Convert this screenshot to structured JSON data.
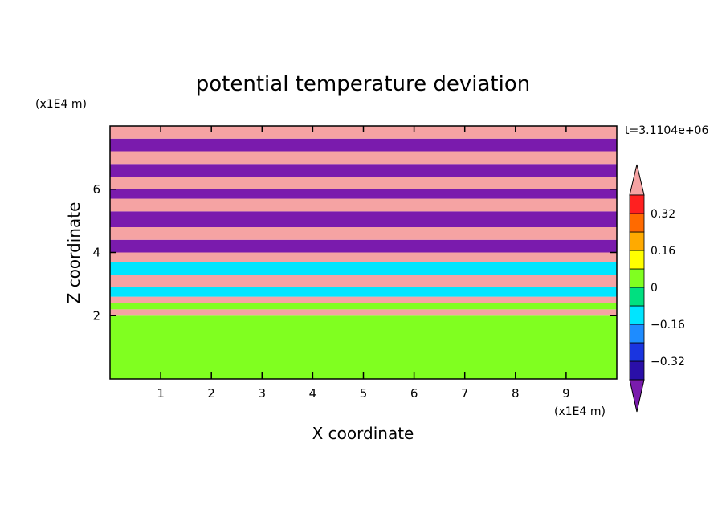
{
  "chart_data": {
    "type": "heatmap",
    "title": "potential temperature deviation",
    "time_label": "t=3.1104e+06",
    "xlabel": "X coordinate",
    "ylabel": "Z coordinate",
    "x_unit": "(x1E4 m)",
    "y_unit": "(x1E4 m)",
    "xlim": [
      0,
      10
    ],
    "ylim": [
      0,
      8
    ],
    "x_ticks": [
      "1",
      "2",
      "3",
      "4",
      "5",
      "6",
      "7",
      "8",
      "9"
    ],
    "y_ticks": [
      "2",
      "4",
      "6"
    ],
    "colorbar": {
      "levels": [
        -0.48,
        -0.4,
        -0.32,
        -0.24,
        -0.16,
        -0.08,
        0,
        0.08,
        0.16,
        0.24,
        0.32,
        0.4,
        0.48
      ],
      "tick_labels": [
        "0.32",
        "0.16",
        "0",
        "−0.16",
        "−0.32"
      ],
      "tick_values": [
        0.32,
        0.16,
        0,
        -0.16,
        -0.32
      ],
      "colors": [
        "#7a1bad",
        "#2a0fa8",
        "#1a35e0",
        "#1e8cff",
        "#00e5ff",
        "#00e080",
        "#80ff20",
        "#ffff00",
        "#ffaa00",
        "#ff6a00",
        "#ff2020",
        "#f5a3a3"
      ]
    },
    "bands": [
      {
        "z_from": 0.0,
        "z_to": 2.0,
        "value": 0.0
      },
      {
        "z_from": 2.0,
        "z_to": 2.2,
        "value": 0.45
      },
      {
        "z_from": 2.2,
        "z_to": 2.4,
        "value": 0.05
      },
      {
        "z_from": 2.4,
        "z_to": 2.6,
        "value": 0.45
      },
      {
        "z_from": 2.6,
        "z_to": 2.9,
        "value": -0.1
      },
      {
        "z_from": 2.9,
        "z_to": 3.3,
        "value": 0.45
      },
      {
        "z_from": 3.3,
        "z_to": 3.7,
        "value": -0.1
      },
      {
        "z_from": 3.7,
        "z_to": 4.0,
        "value": 0.45
      },
      {
        "z_from": 4.0,
        "z_to": 4.4,
        "value": -0.45
      },
      {
        "z_from": 4.4,
        "z_to": 4.8,
        "value": 0.45
      },
      {
        "z_from": 4.8,
        "z_to": 5.3,
        "value": -0.45
      },
      {
        "z_from": 5.3,
        "z_to": 5.7,
        "value": 0.45
      },
      {
        "z_from": 5.7,
        "z_to": 6.0,
        "value": -0.45
      },
      {
        "z_from": 6.0,
        "z_to": 6.4,
        "value": 0.45
      },
      {
        "z_from": 6.4,
        "z_to": 6.8,
        "value": -0.45
      },
      {
        "z_from": 6.8,
        "z_to": 7.2,
        "value": 0.45
      },
      {
        "z_from": 7.2,
        "z_to": 7.6,
        "value": -0.45
      },
      {
        "z_from": 7.6,
        "z_to": 8.0,
        "value": 0.45
      }
    ]
  }
}
